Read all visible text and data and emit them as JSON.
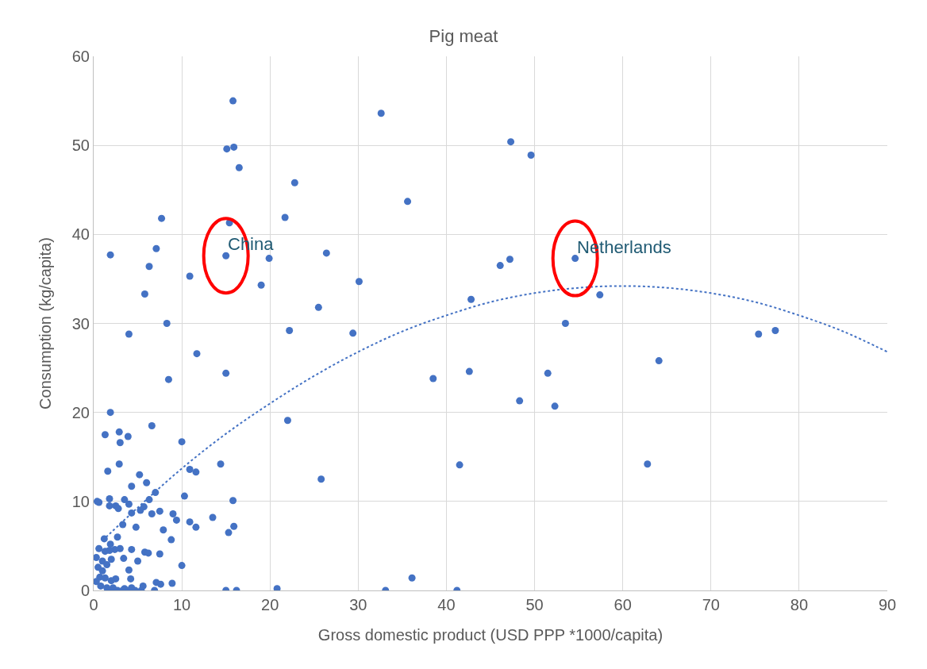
{
  "chart_data": {
    "type": "scatter",
    "title": "Pig meat",
    "xlabel": "Gross domestic product (USD PPP *1000/capita)",
    "ylabel": "Consumption (kg/capita)",
    "xlim": [
      0,
      90
    ],
    "xticks": [
      0,
      10,
      20,
      30,
      40,
      50,
      60,
      70,
      80,
      90
    ],
    "ylim": [
      0,
      60
    ],
    "yticks": [
      0,
      10,
      20,
      30,
      40,
      50,
      60
    ],
    "grid": true,
    "series": [
      {
        "color": "#4472c4",
        "marker": "circle",
        "x": [
          15.8,
          32.6,
          47.3,
          49.6,
          15.1,
          15.9,
          16.5,
          22.8,
          35.6,
          7.7,
          15.4,
          21.7,
          1.9,
          7.1,
          15.0,
          19.9,
          26.4,
          46.1,
          47.2,
          54.6,
          6.3,
          10.9,
          19.0,
          30.1,
          5.8,
          42.8,
          57.4,
          25.5,
          8.3,
          53.5,
          4.0,
          22.2,
          29.4,
          75.4,
          77.3,
          11.7,
          64.1,
          15.0,
          42.6,
          51.5,
          8.5,
          38.5,
          48.3,
          52.3,
          1.9,
          22.0,
          1.3,
          2.9,
          3.9,
          6.6,
          3.0,
          10.0,
          14.4,
          2.9,
          41.5,
          62.8,
          1.6,
          5.2,
          10.9,
          11.6,
          25.8,
          6.0,
          4.3,
          7.0,
          10.3,
          0.4,
          0.6,
          1.8,
          3.5,
          6.3,
          15.8,
          1.8,
          2.5,
          2.8,
          4.0,
          5.3,
          5.7,
          4.3,
          6.6,
          7.5,
          9.0,
          9.4,
          13.5,
          3.3,
          4.8,
          7.9,
          10.9,
          11.6,
          15.9,
          15.3,
          2.7,
          1.2,
          0.6,
          1.9,
          2.4,
          1.3,
          1.8,
          3.0,
          4.3,
          5.8,
          6.2,
          7.5,
          0.3,
          1.0,
          2.0,
          3.4,
          5.0,
          8.8,
          0.5,
          1.0,
          1.5,
          4.0,
          10.0,
          0.7,
          1.3,
          2.5,
          4.2,
          0.3,
          2.0,
          5.6,
          7.1,
          7.6,
          8.9,
          0.8,
          1.5,
          2.2,
          3.5,
          4.3,
          20.8,
          36.1,
          1.6,
          2.7,
          3.3,
          4.0,
          4.7,
          5.4,
          6.9,
          15.0,
          16.2,
          33.1,
          41.2
        ],
        "values": [
          55,
          53.6,
          50.4,
          48.9,
          49.6,
          49.8,
          47.5,
          45.8,
          43.7,
          41.8,
          41.3,
          41.9,
          37.7,
          38.4,
          37.6,
          37.3,
          37.9,
          36.5,
          37.2,
          37.3,
          36.4,
          35.3,
          34.3,
          34.7,
          33.3,
          32.7,
          33.2,
          31.8,
          30.0,
          30.0,
          28.8,
          29.2,
          28.9,
          28.8,
          29.2,
          26.6,
          25.8,
          24.4,
          24.6,
          24.4,
          23.7,
          23.8,
          21.3,
          20.7,
          20.0,
          19.1,
          17.5,
          17.8,
          17.3,
          18.5,
          16.6,
          16.7,
          14.2,
          14.2,
          14.1,
          14.2,
          13.4,
          13.0,
          13.6,
          13.3,
          12.5,
          12.1,
          11.7,
          11.0,
          10.6,
          10.0,
          9.9,
          10.3,
          10.2,
          10.2,
          10.1,
          9.5,
          9.5,
          9.2,
          9.7,
          9.0,
          9.4,
          8.7,
          8.6,
          8.9,
          8.6,
          7.9,
          8.2,
          7.4,
          7.1,
          6.8,
          7.7,
          7.1,
          7.2,
          6.5,
          6.0,
          5.8,
          4.7,
          5.2,
          4.6,
          4.4,
          4.5,
          4.7,
          4.6,
          4.3,
          4.2,
          4.1,
          3.7,
          3.3,
          3.5,
          3.6,
          3.3,
          5.7,
          2.6,
          2.2,
          2.9,
          2.3,
          2.8,
          1.5,
          1.4,
          1.3,
          1.3,
          1.0,
          1.1,
          0.5,
          0.9,
          0.7,
          0.8,
          0.5,
          0.3,
          0.3,
          0.2,
          0.3,
          0.2,
          1.4,
          0,
          0,
          0,
          0,
          0,
          0,
          0,
          0,
          0,
          0,
          0
        ]
      },
      {
        "type": "line",
        "color": "#4472c4",
        "line_style": "dotted",
        "marker": "none",
        "x": [
          1,
          5,
          10,
          15,
          20,
          25,
          30,
          35,
          40,
          45,
          50,
          55,
          60,
          65,
          70,
          75,
          80,
          85,
          90
        ],
        "values": [
          5.6,
          9.3,
          13.7,
          17.6,
          21.0,
          24.1,
          26.8,
          29.1,
          30.9,
          32.4,
          33.4,
          34.0,
          34.2,
          34.0,
          33.4,
          32.4,
          30.9,
          29.1,
          26.8
        ]
      }
    ],
    "annotations": [
      {
        "text": "China",
        "x": 15.0,
        "y": 37.6
      },
      {
        "text": "Netherlands",
        "x": 54.6,
        "y": 37.3
      }
    ]
  }
}
